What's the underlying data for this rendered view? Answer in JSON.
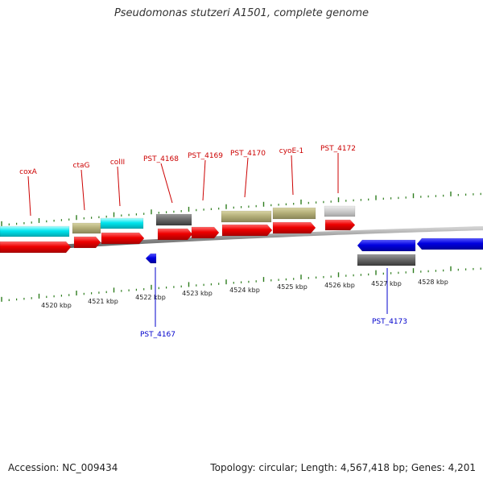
{
  "title": "Pseudomonas stutzeri A1501, complete genome",
  "footer": {
    "accession": "Accession: NC_009434",
    "summary": "Topology: circular; Length: 4,567,418 bp; Genes: 4,201"
  },
  "colors": {
    "forward_label": "#cc0000",
    "reverse_label": "#0000cc",
    "cds_forward": "#ee0000",
    "cds_reverse": "#0000e0",
    "tick": "#2e7d1e",
    "backbone": "#8c8c8c"
  },
  "scale": {
    "labels": [
      "4520 kbp",
      "4521 kbp",
      "4522 kbp",
      "4523 kbp",
      "4524 kbp",
      "4525 kbp",
      "4526 kbp",
      "4527 kbp",
      "4528 kbp"
    ]
  },
  "gene_labels": {
    "forward": [
      "coxA",
      "ctaG",
      "colII",
      "PST_4168",
      "PST_4169",
      "PST_4170",
      "cyoE-1",
      "PST_4172"
    ],
    "reverse": [
      "PST_4167",
      "PST_4173"
    ]
  }
}
